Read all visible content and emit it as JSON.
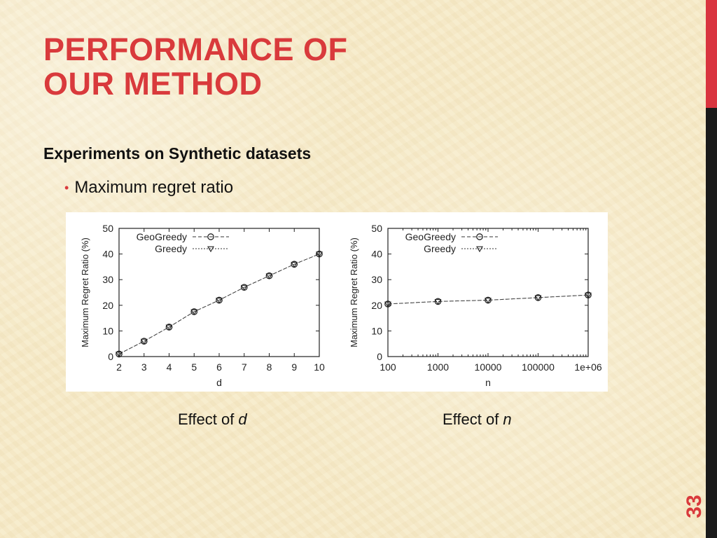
{
  "slide": {
    "title_line1": "PERFORMANCE OF",
    "title_line2": "OUR METHOD",
    "subheading": "Experiments on Synthetic datasets",
    "bullet": "Maximum regret ratio",
    "caption_left_prefix": "Effect of ",
    "caption_left_var": "d",
    "caption_right_prefix": "Effect of ",
    "caption_right_var": "n",
    "page_number": "33",
    "colors": {
      "accent": "#d93a3c",
      "sidebar_top": "#d9343f",
      "sidebar_bottom": "#1a1a1a",
      "background": "#f7ebc9"
    }
  },
  "chart_data": [
    {
      "type": "line",
      "xlabel": "d",
      "ylabel": "Maximum Regret Ratio (%)",
      "x": [
        2,
        3,
        4,
        5,
        6,
        7,
        8,
        9,
        10
      ],
      "x_tick_labels": [
        "2",
        "3",
        "4",
        "5",
        "6",
        "7",
        "8",
        "9",
        "10"
      ],
      "xlim": [
        2,
        10
      ],
      "ylim": [
        0,
        50
      ],
      "y_ticks": [
        0,
        10,
        20,
        30,
        40,
        50
      ],
      "legend_position": "top-left",
      "grid": false,
      "series": [
        {
          "name": "GeoGreedy",
          "marker": "circle",
          "line": "dashed",
          "values": [
            1,
            6,
            11.5,
            17.5,
            22,
            27,
            31.5,
            36,
            40
          ]
        },
        {
          "name": "Greedy",
          "marker": "triangle-down",
          "line": "dotted",
          "values": [
            1,
            6,
            11.5,
            17.5,
            22,
            27,
            31.5,
            36,
            40
          ]
        }
      ]
    },
    {
      "type": "line",
      "xlabel": "n",
      "ylabel": "Maximum Regret Ratio (%)",
      "x": [
        100,
        1000,
        10000,
        100000,
        1000000
      ],
      "x_tick_labels": [
        "100",
        "1000",
        "10000",
        "100000",
        "1e+06"
      ],
      "x_scale": "log",
      "xlim": [
        100,
        1000000
      ],
      "ylim": [
        0,
        50
      ],
      "y_ticks": [
        0,
        10,
        20,
        30,
        40,
        50
      ],
      "legend_position": "top-left",
      "grid": false,
      "series": [
        {
          "name": "GeoGreedy",
          "marker": "circle",
          "line": "dashed",
          "values": [
            20.5,
            21.5,
            22,
            23,
            24
          ]
        },
        {
          "name": "Greedy",
          "marker": "triangle-down",
          "line": "dotted",
          "values": [
            20.5,
            21.5,
            22,
            23,
            24
          ]
        }
      ]
    }
  ]
}
